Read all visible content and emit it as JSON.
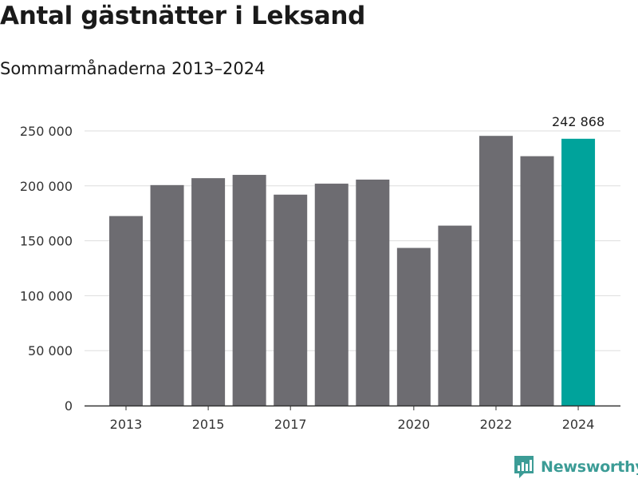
{
  "header": {
    "title": "Antal gästnätter i Leksand",
    "subtitle": "Sommarmånaderna 2013–2024"
  },
  "brand": {
    "name": "Newsworthy",
    "color": "#3c9c96"
  },
  "colors": {
    "bar": "#6d6c71",
    "highlight": "#00a39b",
    "grid": "#dddddd",
    "axis": "#333333"
  },
  "chart_data": {
    "type": "bar",
    "categories": [
      "2013",
      "2014",
      "2015",
      "2016",
      "2017",
      "2018",
      "2019",
      "2020",
      "2021",
      "2022",
      "2023",
      "2024"
    ],
    "values": [
      172500,
      200700,
      207000,
      210000,
      192000,
      202000,
      205700,
      143500,
      163800,
      245500,
      227000,
      242868
    ],
    "highlight_index": 11,
    "highlight_label": "242 868",
    "x_tick_labels": [
      "2013",
      "2015",
      "2017",
      "2020",
      "2022",
      "2024"
    ],
    "y_ticks": [
      0,
      50000,
      100000,
      150000,
      200000,
      250000
    ],
    "y_tick_labels": [
      "0",
      "50 000",
      "100 000",
      "150 000",
      "200 000",
      "250 000"
    ],
    "ylim": [
      0,
      250000
    ],
    "grid": true,
    "xlabel": "",
    "ylabel": ""
  }
}
